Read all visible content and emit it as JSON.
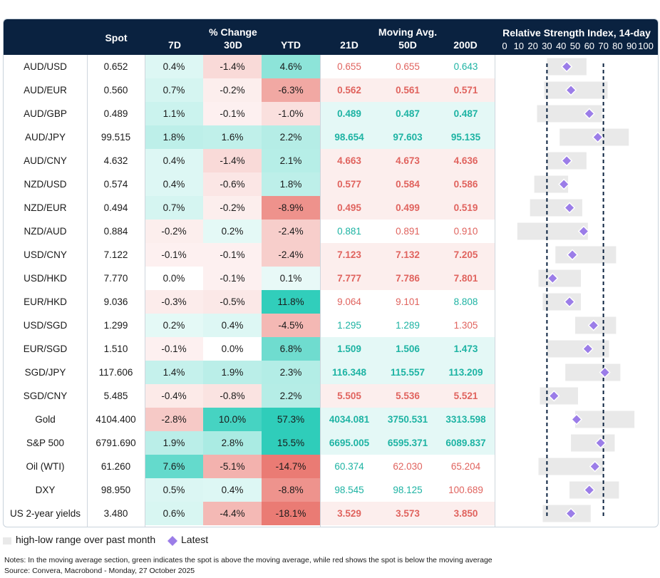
{
  "header": {
    "spot": "Spot",
    "pct_change": "% Change",
    "d7": "7D",
    "d30": "30D",
    "ytd": "YTD",
    "moving_avg": "Moving Avg.",
    "ma21": "21D",
    "ma50": "50D",
    "ma200": "200D",
    "rsi_title": "Relative Strength Index, 14-day"
  },
  "legend": {
    "range_label": "high-low range over past month",
    "latest_label": "Latest"
  },
  "notes": {
    "note": "Notes: In the moving average section, green indicates the spot is above the moving average, while red shows the spot is below the moving average",
    "source": "Source: Convera, Macrobond - Monday, 27 October 2025"
  },
  "colors": {
    "header_bg": "#0a2240",
    "pos_text": "#1db3a3",
    "neg_text": "#e0635e",
    "rsi_marker": "#9b7de8",
    "rsi_range": "#e9e9e9",
    "threshold_line": "#0a2240"
  },
  "chart_data": {
    "type": "table",
    "title": "Relative Strength Index, 14-day",
    "rsi_axis": {
      "ticks": [
        "0",
        "10",
        "20",
        "30",
        "40",
        "50",
        "60",
        "70",
        "80",
        "90",
        "100"
      ],
      "range": [
        0,
        100
      ],
      "thresholds": [
        30,
        70
      ]
    },
    "rows": [
      {
        "name": "AUD/USD",
        "spot": "0.652",
        "d7": "0.4%",
        "d30": "-1.4%",
        "ytd": "4.6%",
        "ma21": "0.655",
        "ma50": "0.655",
        "ma200": "0.643",
        "rsi": 44,
        "rsi_low": 30,
        "rsi_high": 58
      },
      {
        "name": "AUD/EUR",
        "spot": "0.560",
        "d7": "0.7%",
        "d30": "-0.2%",
        "ytd": "-6.3%",
        "ma21": "0.562",
        "ma50": "0.561",
        "ma200": "0.571",
        "rsi": 47,
        "rsi_low": 28,
        "rsi_high": 73
      },
      {
        "name": "AUD/GBP",
        "spot": "0.489",
        "d7": "1.1%",
        "d30": "-0.1%",
        "ytd": "-1.0%",
        "ma21": "0.489",
        "ma50": "0.487",
        "ma200": "0.487",
        "rsi": 60,
        "rsi_low": 23,
        "rsi_high": 69
      },
      {
        "name": "AUD/JPY",
        "spot": "99.515",
        "d7": "1.8%",
        "d30": "1.6%",
        "ytd": "2.2%",
        "ma21": "98.654",
        "ma50": "97.603",
        "ma200": "95.135",
        "rsi": 66,
        "rsi_low": 39,
        "rsi_high": 88
      },
      {
        "name": "AUD/CNY",
        "spot": "4.632",
        "d7": "0.4%",
        "d30": "-1.4%",
        "ytd": "2.1%",
        "ma21": "4.663",
        "ma50": "4.673",
        "ma200": "4.636",
        "rsi": 44,
        "rsi_low": 30,
        "rsi_high": 58
      },
      {
        "name": "NZD/USD",
        "spot": "0.574",
        "d7": "0.4%",
        "d30": "-0.6%",
        "ytd": "1.8%",
        "ma21": "0.577",
        "ma50": "0.584",
        "ma200": "0.586",
        "rsi": 42,
        "rsi_low": 21,
        "rsi_high": 45
      },
      {
        "name": "NZD/EUR",
        "spot": "0.494",
        "d7": "0.7%",
        "d30": "-0.2%",
        "ytd": "-8.9%",
        "ma21": "0.495",
        "ma50": "0.499",
        "ma200": "0.519",
        "rsi": 46,
        "rsi_low": 18,
        "rsi_high": 55
      },
      {
        "name": "NZD/AUD",
        "spot": "0.884",
        "d7": "-0.2%",
        "d30": "0.2%",
        "ytd": "-2.4%",
        "ma21": "0.881",
        "ma50": "0.891",
        "ma200": "0.910",
        "rsi": 56,
        "rsi_low": 9,
        "rsi_high": 59
      },
      {
        "name": "USD/CNY",
        "spot": "7.122",
        "d7": "-0.1%",
        "d30": "-0.1%",
        "ytd": "-2.4%",
        "ma21": "7.123",
        "ma50": "7.132",
        "ma200": "7.205",
        "rsi": 48,
        "rsi_low": 36,
        "rsi_high": 79
      },
      {
        "name": "USD/HKD",
        "spot": "7.770",
        "d7": "0.0%",
        "d30": "-0.1%",
        "ytd": "0.1%",
        "ma21": "7.777",
        "ma50": "7.786",
        "ma200": "7.801",
        "rsi": 34,
        "rsi_low": 24,
        "rsi_high": 54
      },
      {
        "name": "EUR/HKD",
        "spot": "9.036",
        "d7": "-0.3%",
        "d30": "-0.5%",
        "ytd": "11.8%",
        "ma21": "9.064",
        "ma50": "9.101",
        "ma200": "8.808",
        "rsi": 46,
        "rsi_low": 27,
        "rsi_high": 54
      },
      {
        "name": "USD/SGD",
        "spot": "1.299",
        "d7": "0.2%",
        "d30": "0.4%",
        "ytd": "-4.5%",
        "ma21": "1.295",
        "ma50": "1.289",
        "ma200": "1.305",
        "rsi": 63,
        "rsi_low": 50,
        "rsi_high": 79
      },
      {
        "name": "EUR/SGD",
        "spot": "1.510",
        "d7": "-0.1%",
        "d30": "0.0%",
        "ytd": "6.8%",
        "ma21": "1.509",
        "ma50": "1.506",
        "ma200": "1.473",
        "rsi": 59,
        "rsi_low": 30,
        "rsi_high": 74
      },
      {
        "name": "SGD/JPY",
        "spot": "117.606",
        "d7": "1.4%",
        "d30": "1.9%",
        "ytd": "2.3%",
        "ma21": "116.348",
        "ma50": "115.557",
        "ma200": "113.209",
        "rsi": 71,
        "rsi_low": 43,
        "rsi_high": 82
      },
      {
        "name": "SGD/CNY",
        "spot": "5.485",
        "d7": "-0.4%",
        "d30": "-0.8%",
        "ytd": "2.2%",
        "ma21": "5.505",
        "ma50": "5.536",
        "ma200": "5.521",
        "rsi": 35,
        "rsi_low": 25,
        "rsi_high": 52
      },
      {
        "name": "Gold",
        "spot": "4104.400",
        "d7": "-2.8%",
        "d30": "10.0%",
        "ytd": "57.3%",
        "ma21": "4034.081",
        "ma50": "3750.531",
        "ma200": "3313.598",
        "rsi": 51,
        "rsi_low": 50,
        "rsi_high": 92
      },
      {
        "name": "S&P 500",
        "spot": "6791.690",
        "d7": "1.9%",
        "d30": "2.8%",
        "ytd": "15.5%",
        "ma21": "6695.005",
        "ma50": "6595.371",
        "ma200": "6089.837",
        "rsi": 68,
        "rsi_low": 47,
        "rsi_high": 78
      },
      {
        "name": "Oil (WTI)",
        "spot": "61.260",
        "d7": "7.6%",
        "d30": "-5.1%",
        "ytd": "-14.7%",
        "ma21": "60.374",
        "ma50": "62.030",
        "ma200": "65.204",
        "rsi": 64,
        "rsi_low": 24,
        "rsi_high": 70
      },
      {
        "name": "DXY",
        "spot": "98.950",
        "d7": "0.5%",
        "d30": "0.4%",
        "ytd": "-8.8%",
        "ma21": "98.545",
        "ma50": "98.125",
        "ma200": "100.689",
        "rsi": 60,
        "rsi_low": 46,
        "rsi_high": 81
      },
      {
        "name": "US 2-year yields",
        "spot": "3.480",
        "d7": "0.6%",
        "d30": "-4.4%",
        "ytd": "-18.1%",
        "ma21": "3.529",
        "ma50": "3.573",
        "ma200": "3.850",
        "rsi": 47,
        "rsi_low": 27,
        "rsi_high": 61
      }
    ]
  }
}
